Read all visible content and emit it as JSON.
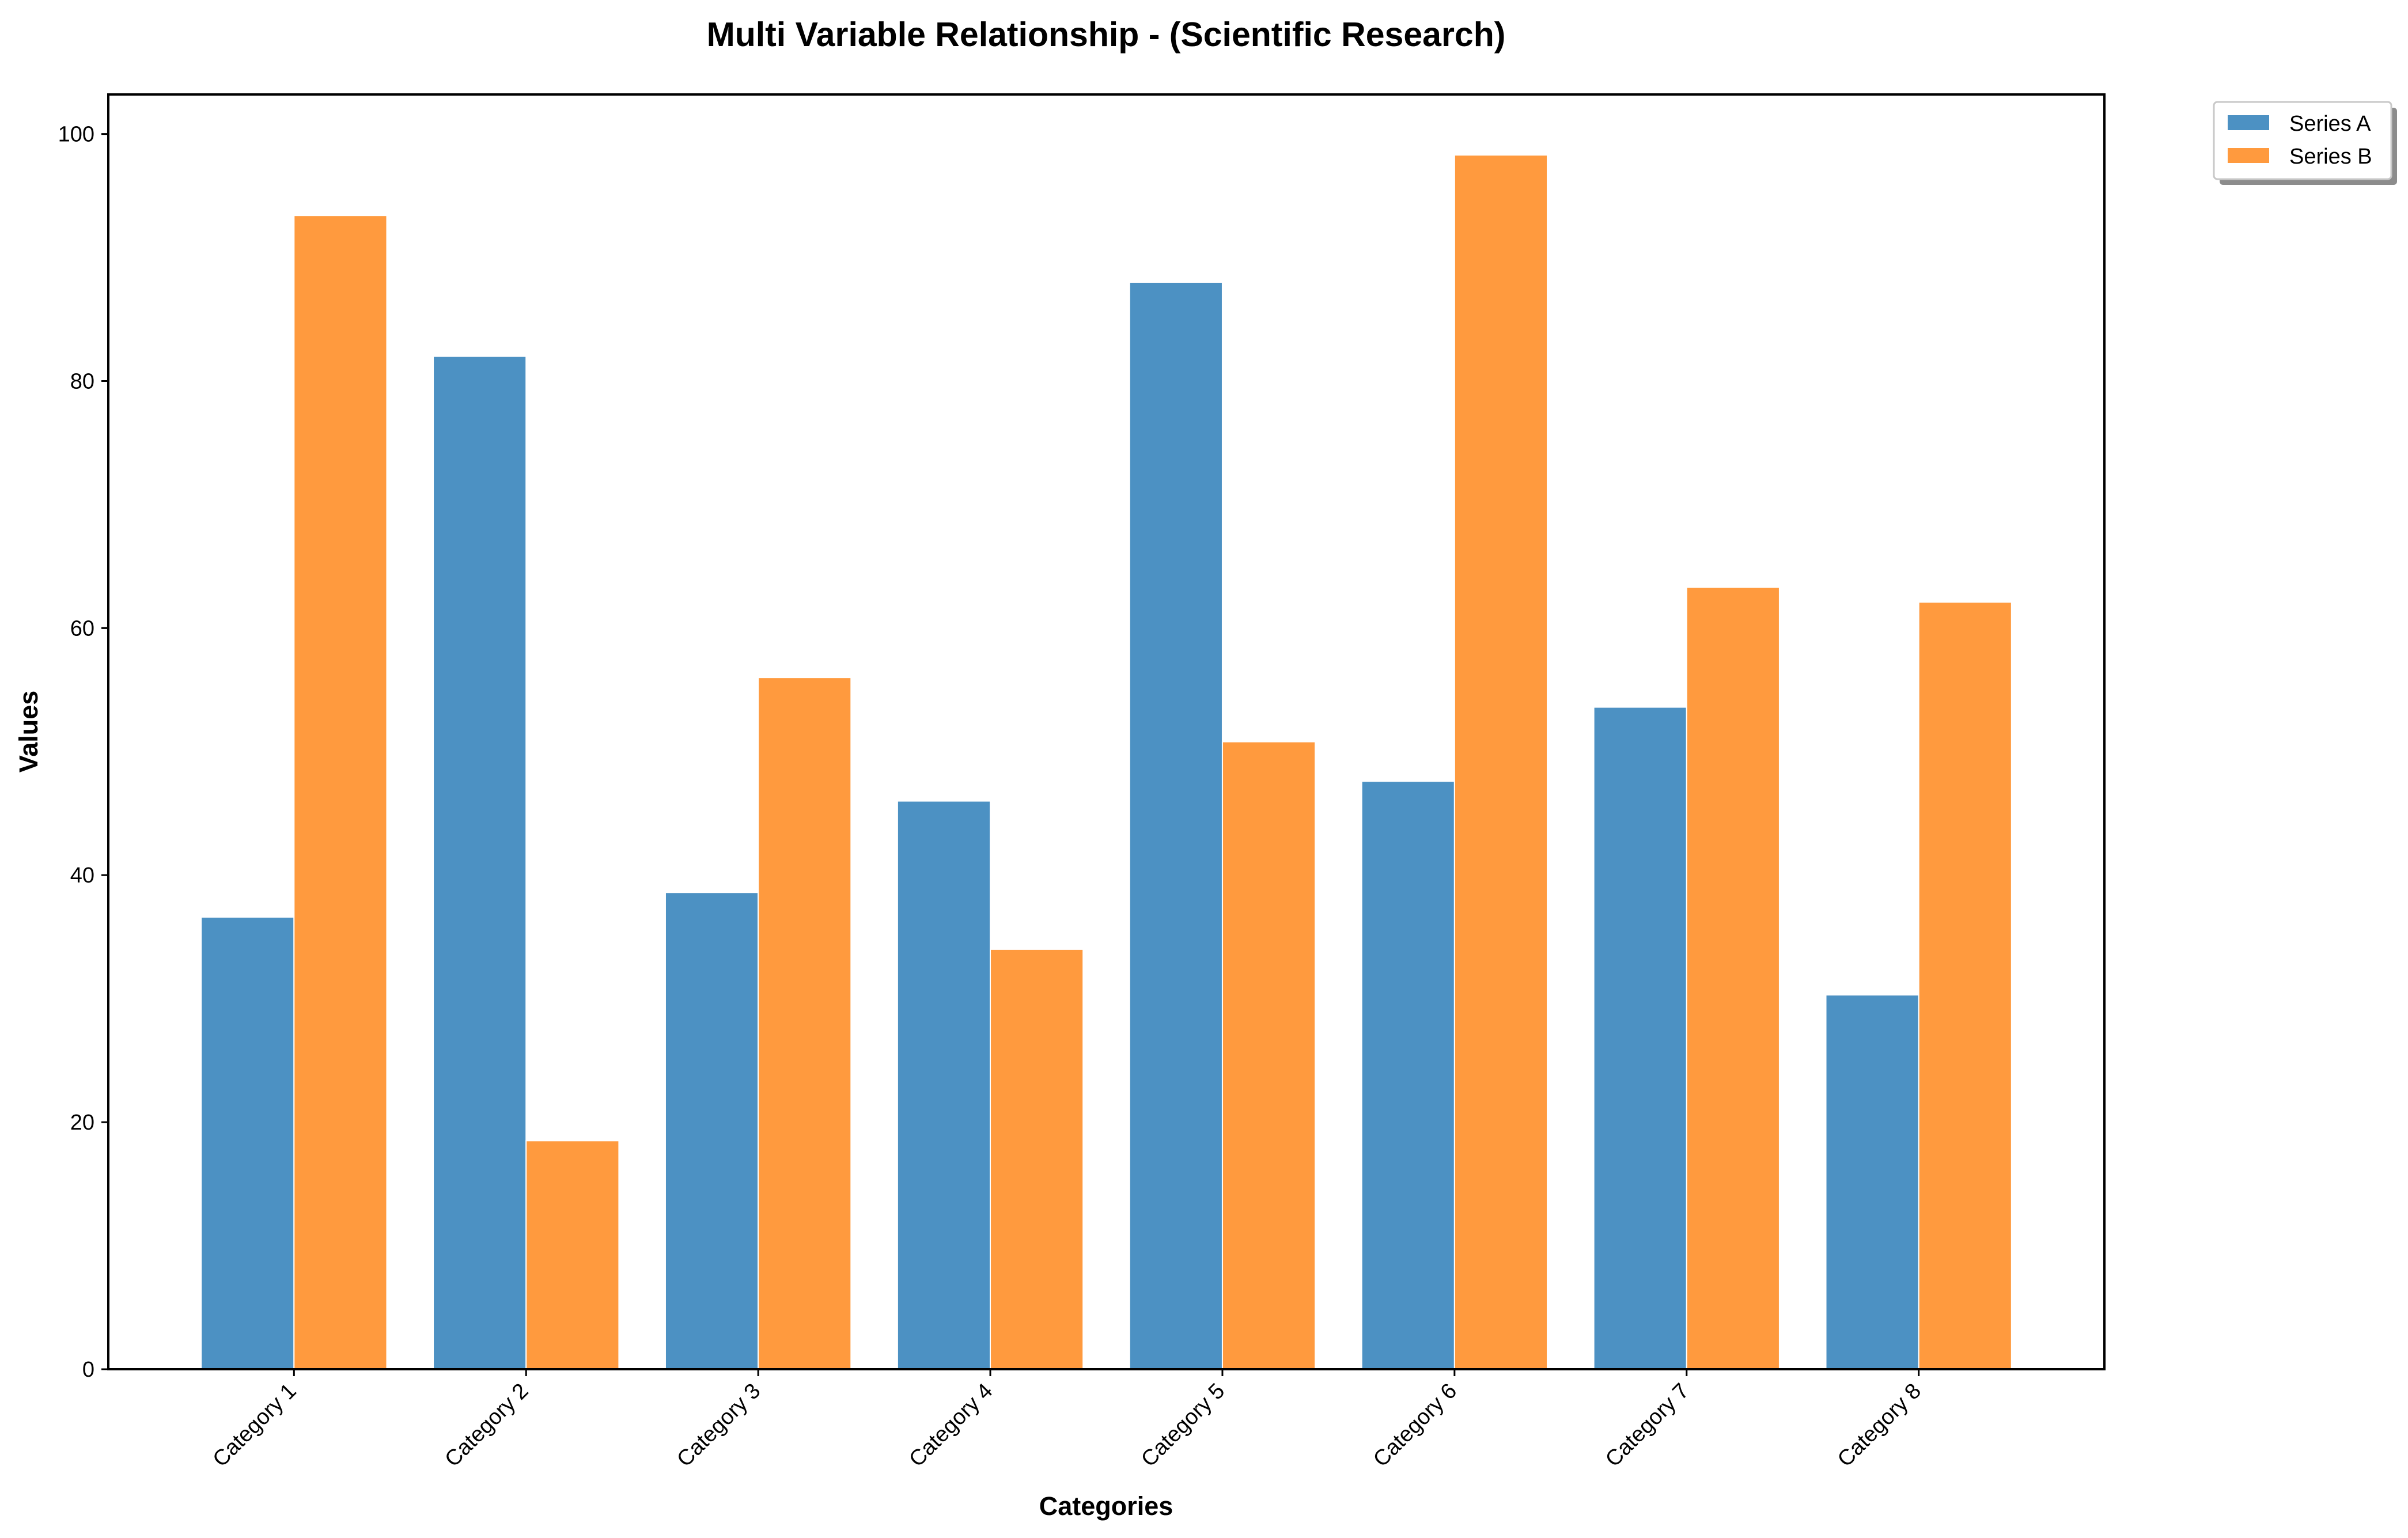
{
  "chart_data": {
    "type": "bar",
    "title": "Multi Variable Relationship - (Scientific Research)",
    "xlabel": "Categories",
    "ylabel": "Values",
    "categories": [
      "Category 1",
      "Category 2",
      "Category 3",
      "Category 4",
      "Category 5",
      "Category 6",
      "Category 7",
      "Category 8"
    ],
    "series": [
      {
        "name": "Series A",
        "color": "#4c91c3",
        "values": [
          36.6,
          82.0,
          38.6,
          46.0,
          88.0,
          47.6,
          53.6,
          30.3
        ]
      },
      {
        "name": "Series B",
        "color": "#ff9a3e",
        "values": [
          93.4,
          18.5,
          56.0,
          34.0,
          50.8,
          98.3,
          63.3,
          62.1
        ]
      }
    ],
    "ylim": [
      0,
      103.2
    ],
    "yticks": [
      0,
      20,
      40,
      60,
      80,
      100
    ],
    "grid": false,
    "legend_position": "outside-top-right"
  }
}
